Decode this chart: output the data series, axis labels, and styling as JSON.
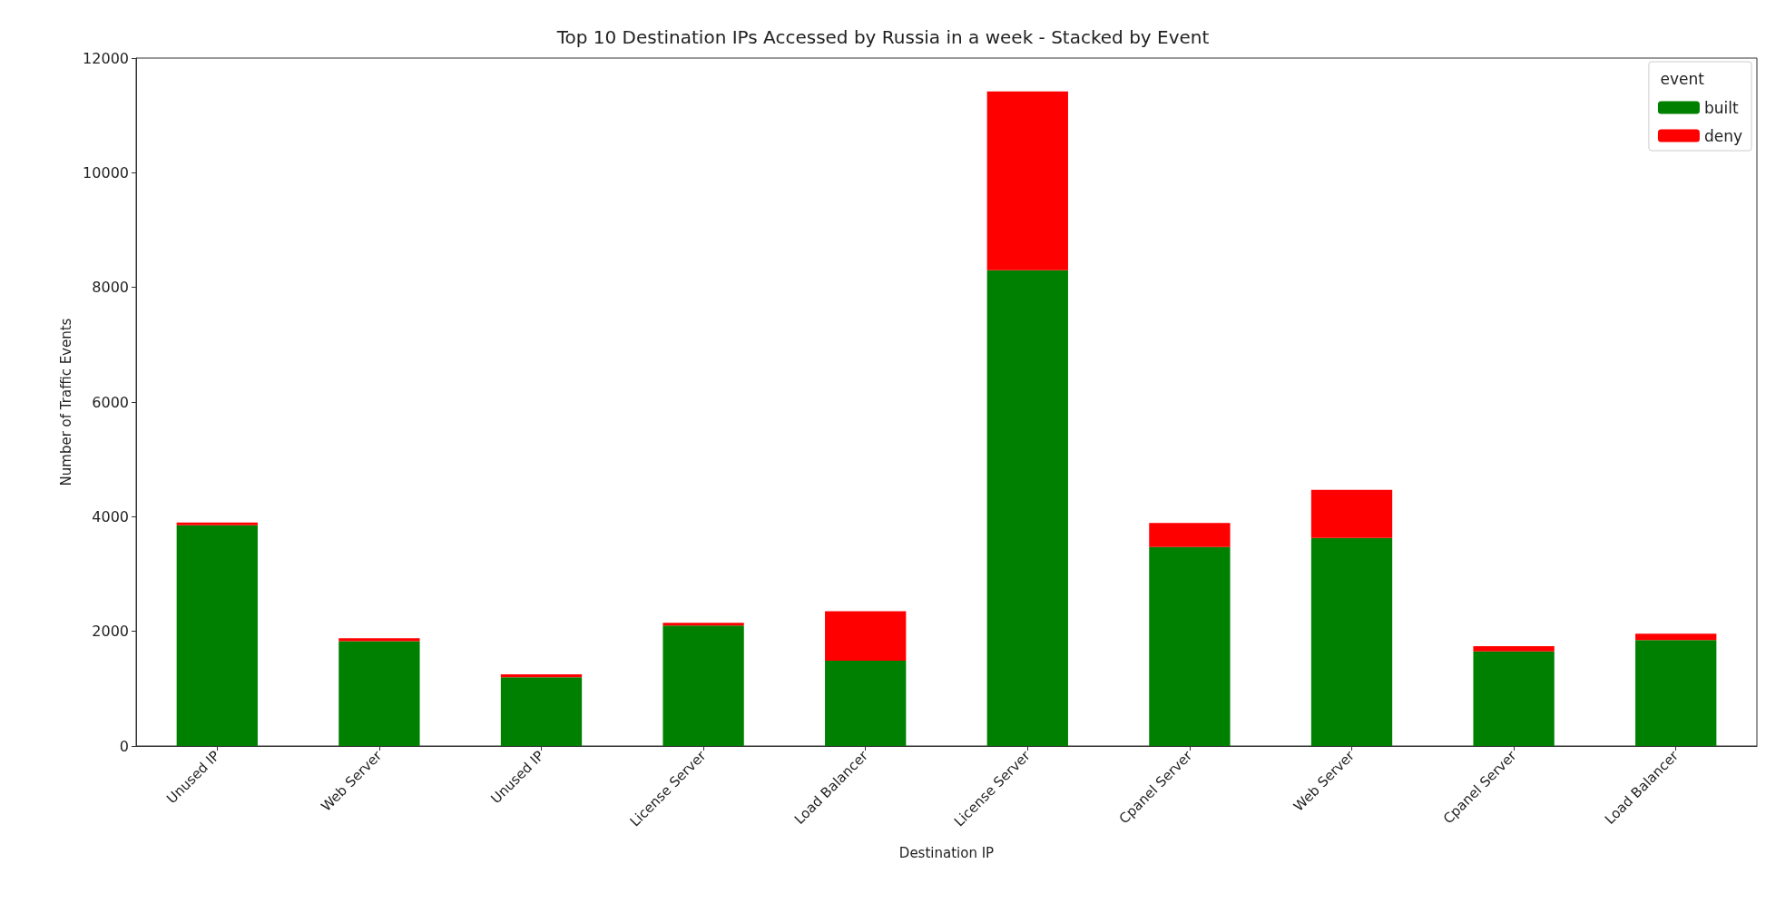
{
  "chart_data": {
    "type": "bar",
    "title": "Top 10 Destination IPs Accessed by Russia in a week - Stacked by Event",
    "xlabel": "Destination IP",
    "ylabel": "Number of Traffic Events",
    "legend_title": "event",
    "categories": [
      "Unused IP",
      "Web Server",
      "Unused IP",
      "License Server",
      "Load Balancer",
      "License Server",
      "Cpanel Server",
      "Web Server",
      "Cpanel Server",
      "Load Balancer"
    ],
    "series": [
      {
        "name": "built",
        "color": "#008000",
        "values": [
          3850,
          1830,
          1200,
          2100,
          1490,
          8300,
          3470,
          3630,
          1650,
          1850
        ]
      },
      {
        "name": "deny",
        "color": "#ff0000",
        "values": [
          50,
          50,
          50,
          50,
          860,
          3120,
          420,
          840,
          90,
          110
        ]
      }
    ],
    "stacked": true,
    "ylim": [
      0,
      12000
    ],
    "yticks": [
      0,
      2000,
      4000,
      6000,
      8000,
      10000,
      12000
    ],
    "grid": false,
    "legend": "top right"
  }
}
